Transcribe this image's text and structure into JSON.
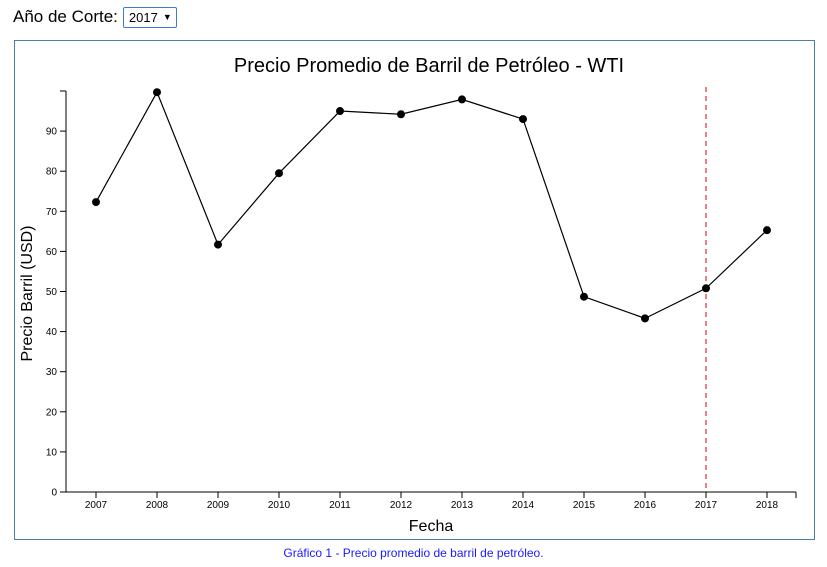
{
  "controls": {
    "year_label": "Año de Corte:",
    "year_selected": "2017"
  },
  "caption": "Gráfico 1 - Precio promedio de barril de petróleo.",
  "chart_data": {
    "type": "line",
    "title": "Precio Promedio de Barril de Petróleo - WTI",
    "xlabel": "Fecha",
    "ylabel": "Precio Barril (USD)",
    "categories": [
      "2007",
      "2008",
      "2009",
      "2010",
      "2011",
      "2012",
      "2013",
      "2014",
      "2015",
      "2016",
      "2017",
      "2018"
    ],
    "values": [
      72.3,
      99.7,
      61.7,
      79.5,
      95.0,
      94.2,
      97.9,
      93.0,
      48.7,
      43.3,
      50.8,
      65.3
    ],
    "yticks": [
      0,
      10,
      20,
      30,
      40,
      50,
      60,
      70,
      80,
      90
    ],
    "ylim": [
      0,
      100
    ],
    "cutoff_year": "2017",
    "colors": {
      "line": "#000000",
      "point": "#000000",
      "cutoff": "#e03030"
    },
    "grid": false
  }
}
